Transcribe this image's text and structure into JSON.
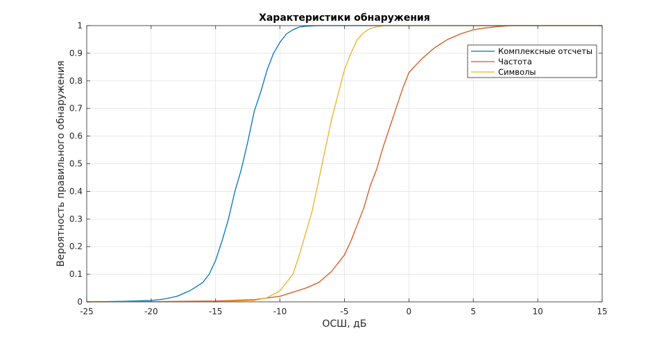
{
  "colors": {
    "series_1": "#0072BD",
    "series_2": "#D95319",
    "series_3": "#EDB120",
    "grid": "#dfdfdf",
    "axis": "#262626"
  },
  "chart_data": {
    "type": "line",
    "title": "Характеристики обнаружения",
    "xlabel": "ОСШ, дБ",
    "ylabel": "Вероятность правильного обнаружения",
    "xlim": [
      -25,
      15
    ],
    "ylim": [
      0,
      1
    ],
    "xticks": [
      -25,
      -20,
      -15,
      -10,
      -5,
      0,
      5,
      10,
      15
    ],
    "xtick_labels": [
      "-25",
      "-20",
      "-15",
      "-10",
      "-5",
      "0",
      "5",
      "10",
      "15"
    ],
    "yticks": [
      0,
      0.1,
      0.2,
      0.3,
      0.4,
      0.5,
      0.6,
      0.7,
      0.8,
      0.9,
      1
    ],
    "ytick_labels": [
      "0",
      "0.1",
      "0.2",
      "0.3",
      "0.4",
      "0.5",
      "0.6",
      "0.7",
      "0.8",
      "0.9",
      "1"
    ],
    "grid": true,
    "legend_position": "top-right",
    "series": [
      {
        "name": "Комплексные отсчеты",
        "x": [
          -25,
          -22,
          -20,
          -19,
          -18,
          -17,
          -16,
          -15.5,
          -15,
          -14.5,
          -14,
          -13.5,
          -13,
          -12.5,
          -12,
          -11.5,
          -11,
          -10.5,
          -10,
          -9.5,
          -9,
          -8.5,
          -8,
          -7,
          -6,
          -5,
          15
        ],
        "y": [
          0,
          0.002,
          0.005,
          0.01,
          0.02,
          0.04,
          0.07,
          0.1,
          0.15,
          0.22,
          0.3,
          0.4,
          0.48,
          0.58,
          0.69,
          0.76,
          0.84,
          0.9,
          0.94,
          0.97,
          0.985,
          0.995,
          0.998,
          1,
          1,
          1,
          1
        ]
      },
      {
        "name": "Частота",
        "x": [
          -25,
          -20,
          -15,
          -12,
          -10,
          -9,
          -8,
          -7,
          -6,
          -5,
          -4.5,
          -4,
          -3.5,
          -3,
          -2.5,
          -2,
          -1.5,
          -1,
          -0.5,
          0,
          1,
          2,
          3,
          4,
          5,
          6,
          7,
          8,
          10,
          15
        ],
        "y": [
          0,
          0.001,
          0.003,
          0.008,
          0.02,
          0.035,
          0.05,
          0.07,
          0.11,
          0.17,
          0.22,
          0.28,
          0.34,
          0.42,
          0.48,
          0.56,
          0.63,
          0.7,
          0.77,
          0.83,
          0.88,
          0.92,
          0.95,
          0.97,
          0.985,
          0.992,
          0.997,
          1,
          1,
          1
        ]
      },
      {
        "name": "Символы",
        "x": [
          -25,
          -15,
          -12,
          -11,
          -10,
          -9,
          -8.5,
          -8,
          -7.5,
          -7,
          -6.5,
          -6,
          -5.5,
          -5,
          -4.5,
          -4,
          -3.5,
          -3,
          -2.5,
          -2,
          0,
          15
        ],
        "y": [
          0,
          0.001,
          0.005,
          0.015,
          0.04,
          0.1,
          0.17,
          0.25,
          0.33,
          0.44,
          0.55,
          0.66,
          0.75,
          0.84,
          0.9,
          0.95,
          0.975,
          0.99,
          0.995,
          1,
          1,
          1
        ]
      }
    ]
  }
}
